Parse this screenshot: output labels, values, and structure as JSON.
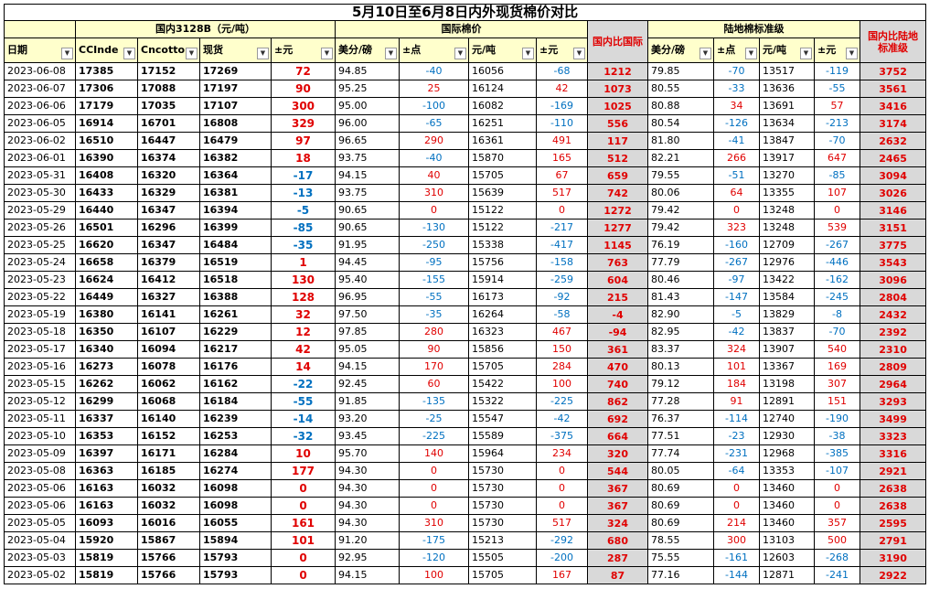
{
  "title": "5月10日至6月8日内外现货棉价对比",
  "groups": [
    "国内3128B（元/吨）",
    "国际棉价",
    "陆地棉标准级"
  ],
  "headers": [
    "日期",
    "CCInde",
    "Cncotto",
    "现货",
    "±元",
    "美分/磅",
    "±点",
    "元/吨",
    "±元",
    "国内比国际",
    "美分/磅",
    "±点",
    "元/吨",
    "±元",
    "国内比陆地标准级"
  ],
  "rows": [
    [
      "2023-06-08",
      "17385",
      "17152",
      "17269",
      "72",
      "94.85",
      "-40",
      "16056",
      "-68",
      "1212",
      "79.85",
      "-70",
      "13517",
      "-119",
      "3752"
    ],
    [
      "2023-06-07",
      "17306",
      "17088",
      "17197",
      "90",
      "95.25",
      "25",
      "16124",
      "42",
      "1073",
      "80.55",
      "-33",
      "13636",
      "-55",
      "3561"
    ],
    [
      "2023-06-06",
      "17179",
      "17035",
      "17107",
      "300",
      "95.00",
      "-100",
      "16082",
      "-169",
      "1025",
      "80.88",
      "34",
      "13691",
      "57",
      "3416"
    ],
    [
      "2023-06-05",
      "16914",
      "16701",
      "16808",
      "329",
      "96.00",
      "-65",
      "16251",
      "-110",
      "556",
      "80.54",
      "-126",
      "13634",
      "-213",
      "3174"
    ],
    [
      "2023-06-02",
      "16510",
      "16447",
      "16479",
      "97",
      "96.65",
      "290",
      "16361",
      "491",
      "117",
      "81.80",
      "-41",
      "13847",
      "-70",
      "2632"
    ],
    [
      "2023-06-01",
      "16390",
      "16374",
      "16382",
      "18",
      "93.75",
      "-40",
      "15870",
      "165",
      "512",
      "82.21",
      "266",
      "13917",
      "647",
      "2465"
    ],
    [
      "2023-05-31",
      "16408",
      "16320",
      "16364",
      "-17",
      "94.15",
      "40",
      "15705",
      "67",
      "659",
      "79.55",
      "-51",
      "13270",
      "-85",
      "3094"
    ],
    [
      "2023-05-30",
      "16433",
      "16329",
      "16381",
      "-13",
      "93.75",
      "310",
      "15639",
      "517",
      "742",
      "80.06",
      "64",
      "13355",
      "107",
      "3026"
    ],
    [
      "2023-05-29",
      "16440",
      "16347",
      "16394",
      "-5",
      "90.65",
      "0",
      "15122",
      "0",
      "1272",
      "79.42",
      "0",
      "13248",
      "0",
      "3146"
    ],
    [
      "2023-05-26",
      "16501",
      "16296",
      "16399",
      "-85",
      "90.65",
      "-130",
      "15122",
      "-217",
      "1277",
      "79.42",
      "323",
      "13248",
      "539",
      "3151"
    ],
    [
      "2023-05-25",
      "16620",
      "16347",
      "16484",
      "-35",
      "91.95",
      "-250",
      "15338",
      "-417",
      "1145",
      "76.19",
      "-160",
      "12709",
      "-267",
      "3775"
    ],
    [
      "2023-05-24",
      "16658",
      "16379",
      "16519",
      "1",
      "94.45",
      "-95",
      "15756",
      "-158",
      "763",
      "77.79",
      "-267",
      "12976",
      "-446",
      "3543"
    ],
    [
      "2023-05-23",
      "16624",
      "16412",
      "16518",
      "130",
      "95.40",
      "-155",
      "15914",
      "-259",
      "604",
      "80.46",
      "-97",
      "13422",
      "-162",
      "3096"
    ],
    [
      "2023-05-22",
      "16449",
      "16327",
      "16388",
      "128",
      "96.95",
      "-55",
      "16173",
      "-92",
      "215",
      "81.43",
      "-147",
      "13584",
      "-245",
      "2804"
    ],
    [
      "2023-05-19",
      "16380",
      "16141",
      "16261",
      "32",
      "97.50",
      "-35",
      "16264",
      "-58",
      "-4",
      "82.90",
      "-5",
      "13829",
      "-8",
      "2432"
    ],
    [
      "2023-05-18",
      "16350",
      "16107",
      "16229",
      "12",
      "97.85",
      "280",
      "16323",
      "467",
      "-94",
      "82.95",
      "-42",
      "13837",
      "-70",
      "2392"
    ],
    [
      "2023-05-17",
      "16340",
      "16094",
      "16217",
      "42",
      "95.05",
      "90",
      "15856",
      "150",
      "361",
      "83.37",
      "324",
      "13907",
      "540",
      "2310"
    ],
    [
      "2023-05-16",
      "16273",
      "16078",
      "16176",
      "14",
      "94.15",
      "170",
      "15705",
      "284",
      "470",
      "80.13",
      "101",
      "13367",
      "169",
      "2809"
    ],
    [
      "2023-05-15",
      "16262",
      "16062",
      "16162",
      "-22",
      "92.45",
      "60",
      "15422",
      "100",
      "740",
      "79.12",
      "184",
      "13198",
      "307",
      "2964"
    ],
    [
      "2023-05-12",
      "16299",
      "16068",
      "16184",
      "-55",
      "91.85",
      "-135",
      "15322",
      "-225",
      "862",
      "77.28",
      "91",
      "12891",
      "151",
      "3293"
    ],
    [
      "2023-05-11",
      "16337",
      "16140",
      "16239",
      "-14",
      "93.20",
      "-25",
      "15547",
      "-42",
      "692",
      "76.37",
      "-114",
      "12740",
      "-190",
      "3499"
    ],
    [
      "2023-05-10",
      "16353",
      "16152",
      "16253",
      "-32",
      "93.45",
      "-225",
      "15589",
      "-375",
      "664",
      "77.51",
      "-23",
      "12930",
      "-38",
      "3323"
    ],
    [
      "2023-05-09",
      "16397",
      "16171",
      "16284",
      "10",
      "95.70",
      "140",
      "15964",
      "234",
      "320",
      "77.74",
      "-231",
      "12968",
      "-385",
      "3316"
    ],
    [
      "2023-05-08",
      "16363",
      "16185",
      "16274",
      "177",
      "94.30",
      "0",
      "15730",
      "0",
      "544",
      "80.05",
      "-64",
      "13353",
      "-107",
      "2921"
    ],
    [
      "2023-05-06",
      "16163",
      "16032",
      "16098",
      "0",
      "94.30",
      "0",
      "15730",
      "0",
      "367",
      "80.69",
      "0",
      "13460",
      "0",
      "2638"
    ],
    [
      "2023-05-06",
      "16163",
      "16032",
      "16098",
      "0",
      "94.30",
      "0",
      "15730",
      "0",
      "367",
      "80.69",
      "0",
      "13460",
      "0",
      "2638"
    ],
    [
      "2023-05-05",
      "16093",
      "16016",
      "16055",
      "161",
      "94.30",
      "310",
      "15730",
      "517",
      "324",
      "80.69",
      "214",
      "13460",
      "357",
      "2595"
    ],
    [
      "2023-05-04",
      "15920",
      "15867",
      "15894",
      "101",
      "91.20",
      "-175",
      "15213",
      "-292",
      "680",
      "78.55",
      "300",
      "13103",
      "500",
      "2791"
    ],
    [
      "2023-05-03",
      "15819",
      "15766",
      "15793",
      "0",
      "92.95",
      "-120",
      "15505",
      "-200",
      "287",
      "75.55",
      "-161",
      "12603",
      "-268",
      "3190"
    ],
    [
      "2023-05-02",
      "15819",
      "15766",
      "15793",
      "0",
      "94.15",
      "100",
      "15705",
      "167",
      "87",
      "77.16",
      "-144",
      "12871",
      "-241",
      "2922"
    ]
  ]
}
